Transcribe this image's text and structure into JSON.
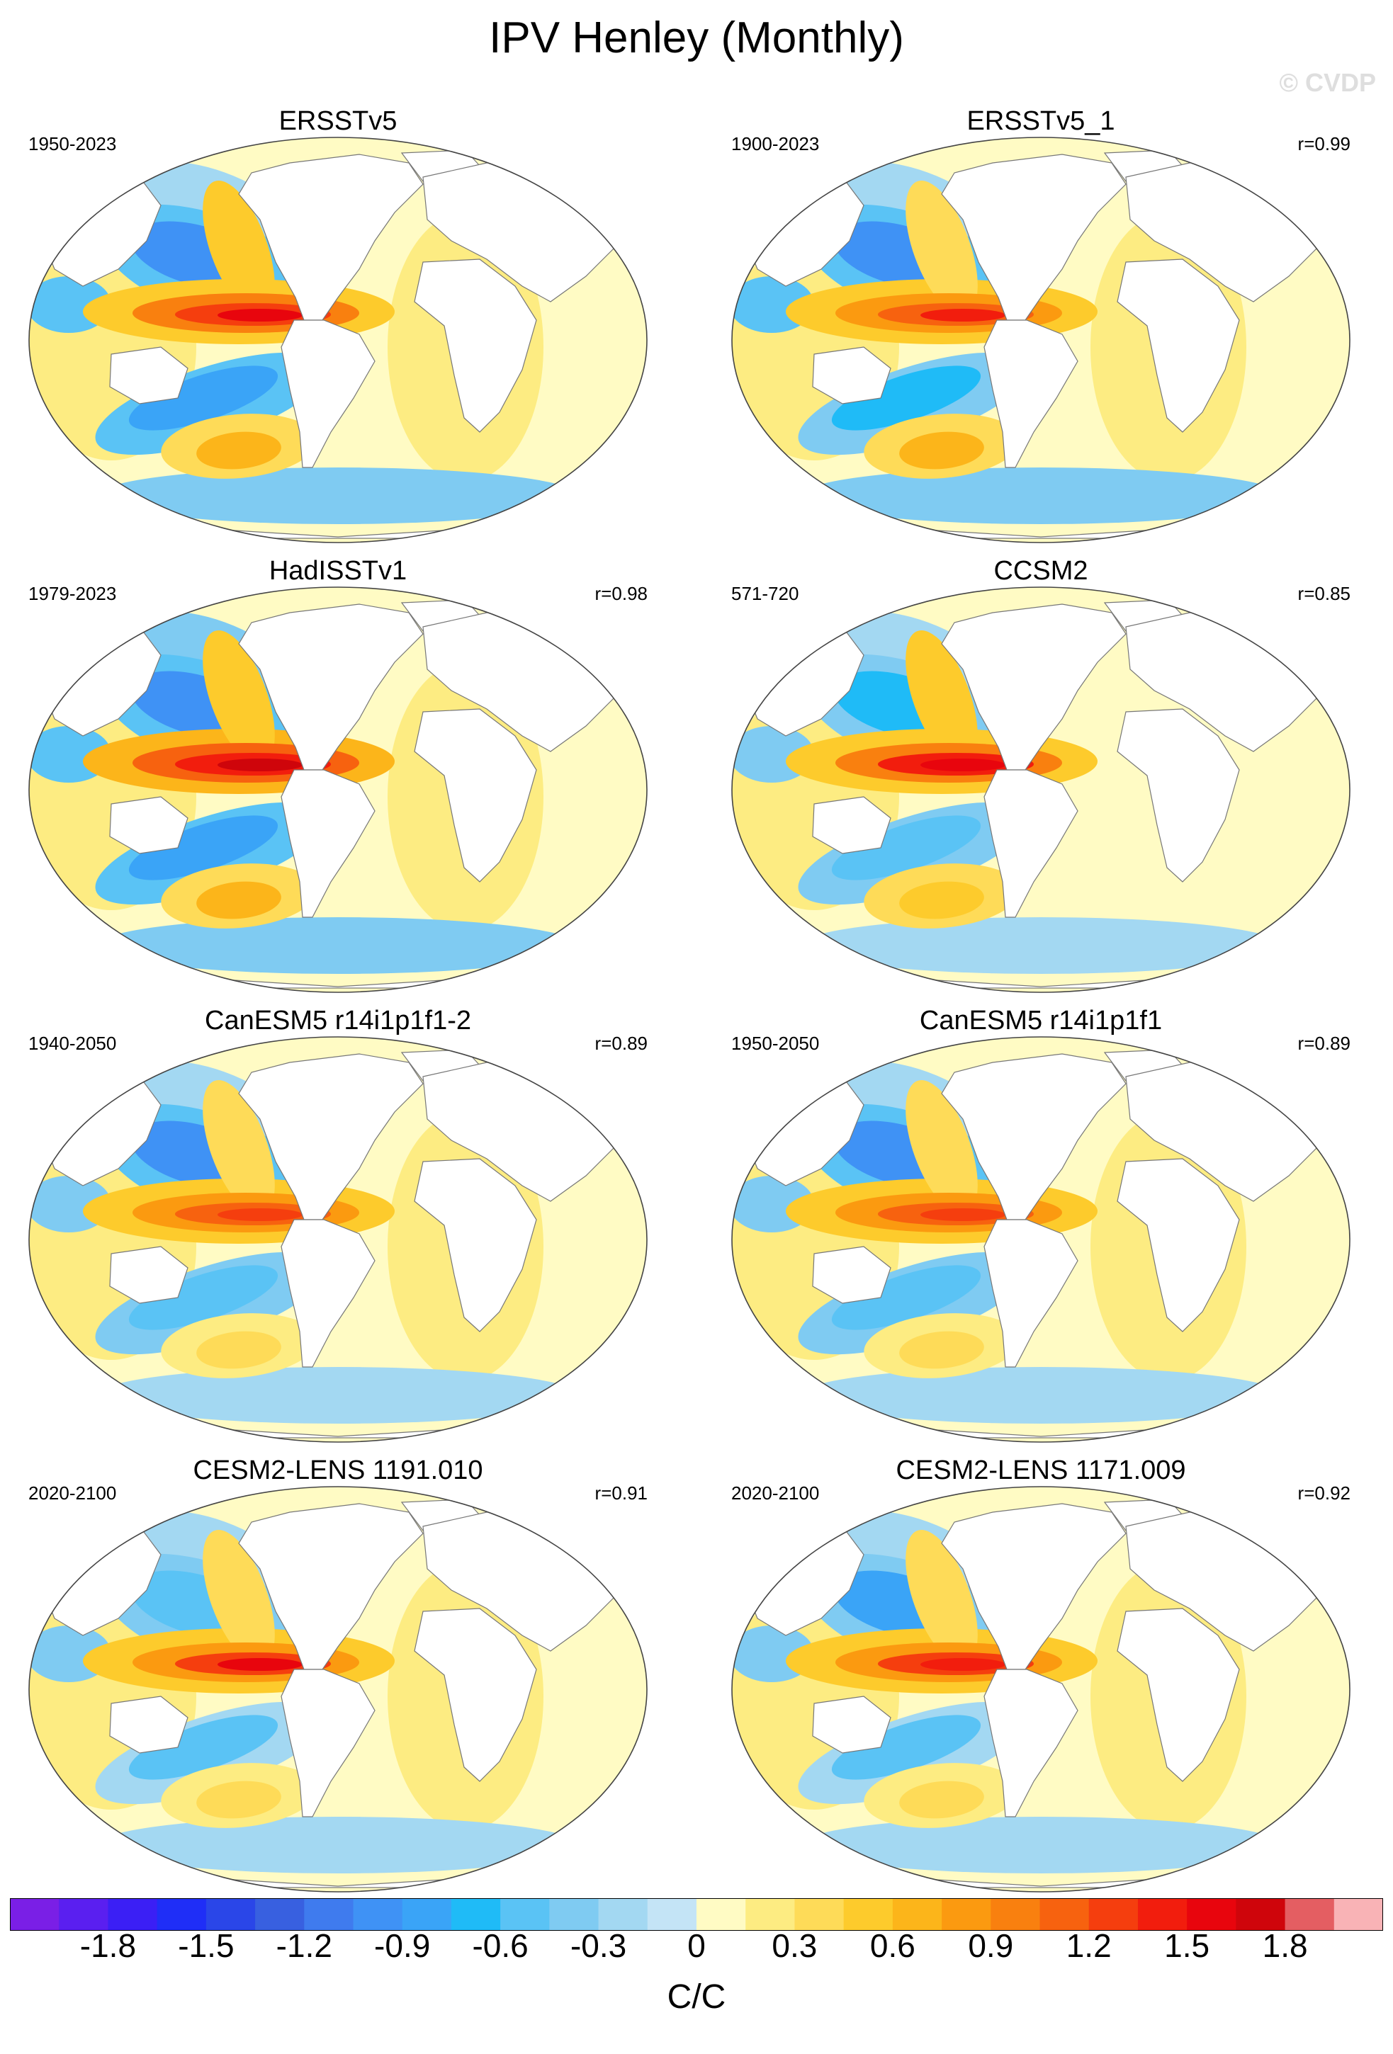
{
  "title": "IPV Henley (Monthly)",
  "watermark": "© CVDP",
  "panels": [
    {
      "title": "ERSSTv5",
      "period": "1950-2023",
      "corr": "",
      "pattern": {
        "eq": 1.55,
        "np": -1.05,
        "sp_band": -0.8,
        "sp": 0.65,
        "nw": -0.5,
        "other": 0.2
      }
    },
    {
      "title": "ERSSTv5_1",
      "period": "1900-2023",
      "corr": "r=0.99",
      "pattern": {
        "eq": 1.35,
        "np": -1.0,
        "sp_band": -0.75,
        "sp": 0.6,
        "nw": -0.5,
        "other": 0.2
      }
    },
    {
      "title": "HadISSTv1",
      "period": "1979-2023",
      "corr": "r=0.98",
      "pattern": {
        "eq": 1.75,
        "np": -0.95,
        "sp_band": -0.8,
        "sp": 0.65,
        "nw": -0.6,
        "other": 0.2
      }
    },
    {
      "title": "CCSM2",
      "period": "571-720",
      "corr": "r=0.85",
      "pattern": {
        "eq": 1.6,
        "np": -0.7,
        "sp_band": -0.55,
        "sp": 0.55,
        "nw": -0.35,
        "other": 0.15
      }
    },
    {
      "title": "CanESM5 r14i1p1f1-2",
      "period": "1940-2050",
      "corr": "r=0.89",
      "pattern": {
        "eq": 1.3,
        "np": -1.05,
        "sp_band": -0.55,
        "sp": 0.4,
        "nw": -0.45,
        "other": 0.2
      }
    },
    {
      "title": "CanESM5 r14i1p1f1",
      "period": "1950-2050",
      "corr": "r=0.89",
      "pattern": {
        "eq": 1.3,
        "np": -1.05,
        "sp_band": -0.55,
        "sp": 0.4,
        "nw": -0.45,
        "other": 0.2
      }
    },
    {
      "title": "CESM2-LENS 1191.010",
      "period": "2020-2100",
      "corr": "r=0.91",
      "pattern": {
        "eq": 1.5,
        "np": -0.6,
        "sp_band": -0.5,
        "sp": 0.4,
        "nw": -0.45,
        "other": 0.2
      }
    },
    {
      "title": "CESM2-LENS 1171.009",
      "period": "2020-2100",
      "corr": "r=0.92",
      "pattern": {
        "eq": 1.45,
        "np": -0.8,
        "sp_band": -0.5,
        "sp": 0.4,
        "nw": -0.45,
        "other": 0.2
      }
    }
  ],
  "colorbar": {
    "units": "C/C",
    "bounds": [
      -2.1,
      -1.95,
      -1.8,
      -1.65,
      -1.5,
      -1.35,
      -1.2,
      -1.05,
      -0.9,
      -0.75,
      -0.6,
      -0.45,
      -0.3,
      -0.15,
      0,
      0.15,
      0.3,
      0.45,
      0.6,
      0.75,
      0.9,
      1.05,
      1.2,
      1.35,
      1.5,
      1.65,
      1.8,
      1.95,
      2.1
    ],
    "labels": [
      "-1.8",
      "-1.5",
      "-1.2",
      "-0.9",
      "-0.6",
      "-0.3",
      "0",
      "0.3",
      "0.6",
      "0.9",
      "1.2",
      "1.5",
      "1.8"
    ],
    "colors": [
      "#7a1fe6",
      "#5a1ff0",
      "#3b1ff5",
      "#1f2ef7",
      "#2a46e8",
      "#3860e0",
      "#3f7bee",
      "#3f92f5",
      "#3aa4f7",
      "#1fbbf7",
      "#5ac3f5",
      "#7fcbf2",
      "#a3d8f2",
      "#c4e4f6",
      "#fffbc4",
      "#fdec82",
      "#fedb58",
      "#fdcb2c",
      "#fcb51a",
      "#fb9a10",
      "#f9800f",
      "#f7620f",
      "#f53e0e",
      "#f21d0d",
      "#e8050d",
      "#cf050b",
      "#e45e62",
      "#f9b3b6"
    ]
  }
}
